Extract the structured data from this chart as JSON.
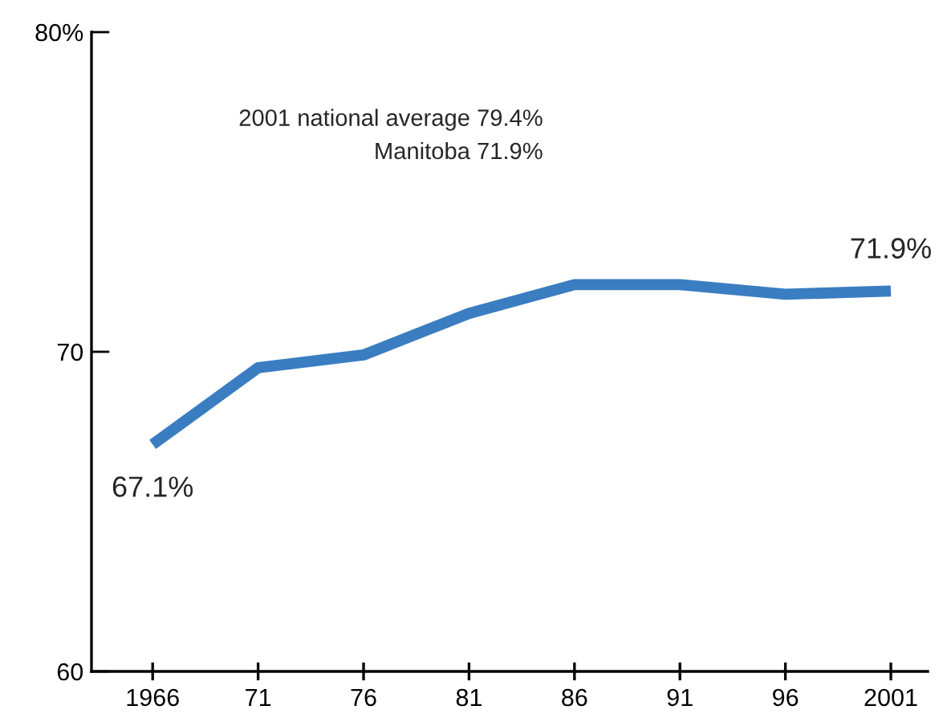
{
  "chart_data": {
    "type": "line",
    "categories": [
      "1966",
      "71",
      "76",
      "81",
      "86",
      "91",
      "96",
      "2001"
    ],
    "series": [
      {
        "color": "#3a7dc1",
        "values": [
          67.1,
          69.5,
          69.9,
          71.2,
          72.1,
          72.1,
          71.8,
          71.9
        ],
        "value_labels": [
          "67.1%",
          null,
          null,
          null,
          null,
          null,
          null,
          "71.9%"
        ]
      }
    ],
    "ylim": [
      60,
      80
    ],
    "yticks": [
      60,
      70,
      {
        "value": 80,
        "label": "80%"
      }
    ],
    "annotations": [
      "2001 national average 79.4%",
      "Manitoba 71.9%"
    ],
    "grid": false,
    "legend": false,
    "marker": "none",
    "line_style": "solid"
  }
}
